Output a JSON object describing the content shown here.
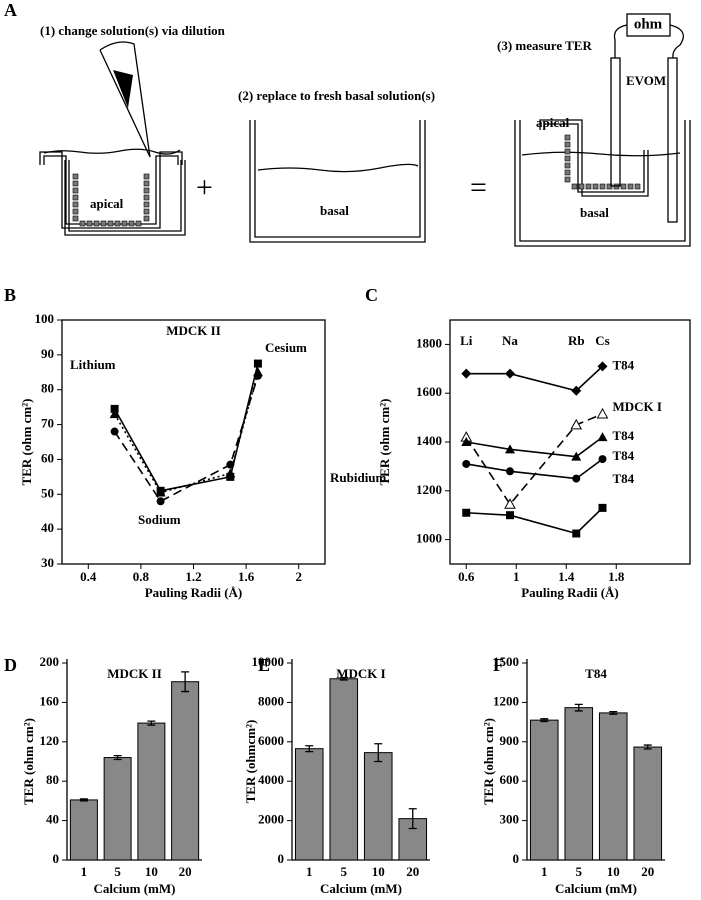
{
  "diagram": {
    "panel": "A",
    "step1": "(1) change solution(s) via dilution",
    "step2": "(2) replace to fresh basal solution(s)",
    "step3": "(3) measure TER",
    "meter": "ohm",
    "device": "EVOM",
    "apical_1": "apical",
    "basal_2": "basal",
    "apical_3": "apical",
    "basal_3": "basal",
    "plus": "+",
    "equals": "="
  },
  "chart_data": [
    {
      "type": "line",
      "panel": "B",
      "title": "MDCK II",
      "xlabel": "Pauling Radii (Å)",
      "ylabel": "TER (ohm cm²)",
      "x": [
        0.6,
        0.95,
        1.48,
        1.69
      ],
      "xlim": [
        0.2,
        2.2
      ],
      "xticks": [
        0.4,
        0.8,
        1.2,
        1.6,
        2
      ],
      "ylim": [
        30,
        100
      ],
      "yticks": [
        30,
        40,
        50,
        60,
        70,
        80,
        90,
        100
      ],
      "annotations": [
        "Lithium",
        "Sodium",
        "Rubidium",
        "Cesium"
      ],
      "series": [
        {
          "color": "#000000",
          "marker": "square",
          "dash": "solid",
          "values": [
            74.5,
            51,
            55,
            87.5
          ]
        },
        {
          "color": "#000000",
          "marker": "triangle",
          "dash": "dotted",
          "values": [
            73,
            50.5,
            56,
            85
          ]
        },
        {
          "color": "#000000",
          "marker": "circle",
          "dash": "dashed",
          "values": [
            68,
            48,
            58.5,
            84
          ]
        }
      ]
    },
    {
      "type": "line",
      "panel": "C",
      "xlabel": "Pauling Radii (Å)",
      "ylabel": "TER (ohm cm²)",
      "x": [
        0.6,
        0.95,
        1.48,
        1.69
      ],
      "x_names": [
        "Li",
        "Na",
        "Rb",
        "Cs"
      ],
      "xlim": [
        0.47,
        2.39
      ],
      "xticks": [
        0.6,
        1,
        1.4,
        1.8
      ],
      "ylim": [
        900,
        1900
      ],
      "yticks": [
        1000,
        1200,
        1400,
        1600,
        1800
      ],
      "series": [
        {
          "name": "T84",
          "color": "#000000",
          "marker": "diamond",
          "dash": "solid",
          "values": [
            1680,
            1680,
            1610,
            1710
          ]
        },
        {
          "name": "MDCK I",
          "color": "#000000",
          "marker": "open-triangle",
          "dash": "dashed",
          "values": [
            1420,
            1145,
            1470,
            1515
          ]
        },
        {
          "name": "T84",
          "color": "#000000",
          "marker": "triangle",
          "dash": "solid",
          "values": [
            1400,
            1370,
            1340,
            1420
          ]
        },
        {
          "name": "T84",
          "color": "#000000",
          "marker": "circle",
          "dash": "solid",
          "values": [
            1310,
            1280,
            1250,
            1330
          ]
        },
        {
          "name": "T84",
          "color": "#000000",
          "marker": "square",
          "dash": "solid",
          "values": [
            1110,
            1100,
            1025,
            1130
          ]
        }
      ]
    },
    {
      "type": "bar",
      "panel": "D",
      "title": "MDCK II",
      "xlabel": "Calcium (mM)",
      "ylabel": "TER (ohm cm²)",
      "color": "#888888",
      "categories": [
        "1",
        "5",
        "10",
        "20"
      ],
      "values": [
        61,
        104,
        139,
        181
      ],
      "errors": [
        1,
        2,
        2,
        10
      ],
      "ylim": [
        0,
        200
      ],
      "yticks": [
        0,
        40,
        80,
        120,
        160,
        200
      ]
    },
    {
      "type": "bar",
      "panel": "E",
      "title": "MDCK I",
      "xlabel": "Calcium (mM)",
      "ylabel": "TER (ohmcm²)",
      "color": "#888888",
      "categories": [
        "1",
        "5",
        "10",
        "20"
      ],
      "values": [
        5650,
        9200,
        5450,
        2100
      ],
      "errors": [
        150,
        60,
        450,
        500
      ],
      "ylim": [
        0,
        10000
      ],
      "yticks": [
        0,
        2000,
        4000,
        6000,
        8000,
        10000
      ]
    },
    {
      "type": "bar",
      "panel": "F",
      "title": "T84",
      "xlabel": "Calcium (mM)",
      "ylabel": "TER (ohm cm²)",
      "color": "#888888",
      "categories": [
        "1",
        "5",
        "10",
        "20"
      ],
      "values": [
        1065,
        1160,
        1120,
        860
      ],
      "errors": [
        10,
        25,
        10,
        15
      ],
      "ylim": [
        0,
        1500
      ],
      "yticks": [
        0,
        300,
        600,
        900,
        1200,
        1500
      ]
    }
  ]
}
